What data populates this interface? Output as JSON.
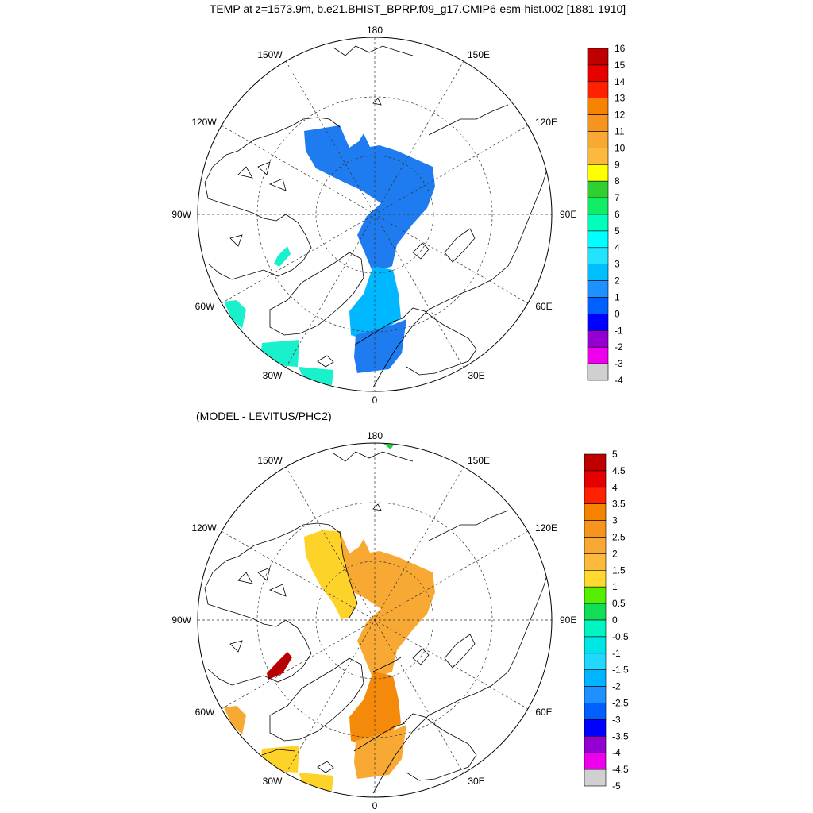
{
  "title": "TEMP at z=1573.9m, b.e21.BHIST_BPRP.f09_g17.CMIP6-esm-hist.002 [1881-1910]",
  "subtitle": "(MODEL - LEVITUS/PHC2)",
  "lon_labels": {
    "top": "180",
    "bottom": "0",
    "left": "90W",
    "right": "90E",
    "upper_left_1": "150W",
    "upper_left_2": "120W",
    "lower_left_1": "60W",
    "lower_left_2": "30W",
    "upper_right_1": "150E",
    "upper_right_2": "120E",
    "lower_right_1": "60E",
    "lower_right_2": "30E"
  },
  "colorbar1": {
    "labels": [
      "16",
      "15",
      "14",
      "13",
      "12",
      "11",
      "10",
      "9",
      "8",
      "7",
      "6",
      "5",
      "4",
      "3",
      "2",
      "1",
      "0",
      "-1",
      "-2",
      "-3",
      "-4"
    ],
    "colors": [
      "#c00000",
      "#e60000",
      "#ff2200",
      "#f58200",
      "#f7941d",
      "#f8a934",
      "#fbba3b",
      "#ffff00",
      "#30d030",
      "#11ee66",
      "#00ffbb",
      "#00ffff",
      "#22e4ff",
      "#00bfff",
      "#1e90ff",
      "#0060ff",
      "#0000ff",
      "#9400d3",
      "#ee00ee",
      "#d0d0d0",
      "#707070"
    ]
  },
  "colorbar2": {
    "labels": [
      "5",
      "4.5",
      "4",
      "3.5",
      "3",
      "2.5",
      "2",
      "1.5",
      "1",
      "0.5",
      "0",
      "-0.5",
      "-1",
      "-1.5",
      "-2",
      "-2.5",
      "-3",
      "-3.5",
      "-4",
      "-4.5",
      "-5"
    ],
    "colors": [
      "#c00000",
      "#e60000",
      "#ff2200",
      "#f58200",
      "#f7941d",
      "#f8a934",
      "#fbba3b",
      "#ffd92f",
      "#55ee00",
      "#11dd55",
      "#00f5c0",
      "#00e5e5",
      "#22d8ff",
      "#00b4ff",
      "#1e90ff",
      "#0060ff",
      "#0000ff",
      "#9400d3",
      "#ee00ee",
      "#d0d0d0",
      "#707070"
    ]
  },
  "fields": {
    "map1": {
      "central_value": "2",
      "basin_value": "3",
      "patch_value": "5"
    },
    "map2": {
      "central_value": "2.5",
      "left_value": "2",
      "basin_value": "3",
      "red_patch_value": "5"
    }
  }
}
